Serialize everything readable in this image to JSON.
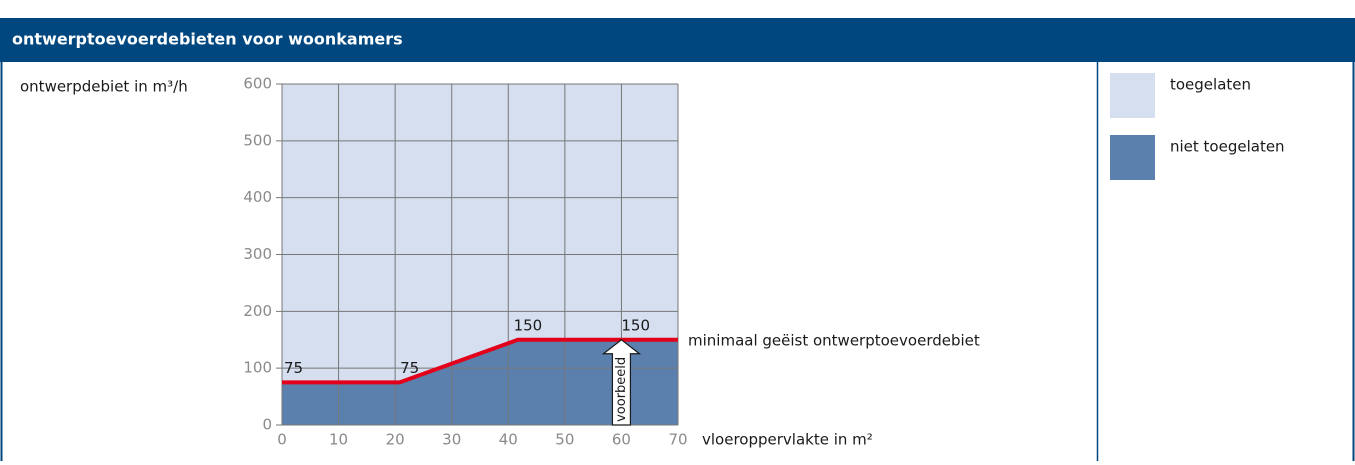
{
  "chart_data": {
    "type": "line",
    "title": "ontwerptoevoerdebieten voor woonkamers",
    "y_label": "ontwerpdebiet in m³/h",
    "x_label": "vloeroppervlakte in m²",
    "line_label": "minimaal geëist ontwerptoevoerdebiet",
    "x": [
      0,
      20.8,
      41.7,
      70
    ],
    "values": [
      75,
      75,
      150,
      150
    ],
    "color": "#e2001a",
    "xlim": [
      0,
      70
    ],
    "xticks": [
      0,
      10,
      20,
      30,
      40,
      50,
      60,
      70
    ],
    "ylim": [
      0,
      600
    ],
    "yticks": [
      0,
      100,
      200,
      300,
      400,
      500,
      600
    ],
    "grid": true,
    "example": {
      "label": "voorbeeld",
      "x": 60,
      "value": 150
    },
    "legend": [
      {
        "label": "toegelaten",
        "color": "#d5dfef"
      },
      {
        "label": "niet toegelaten",
        "color": "#5b80ae"
      }
    ]
  }
}
